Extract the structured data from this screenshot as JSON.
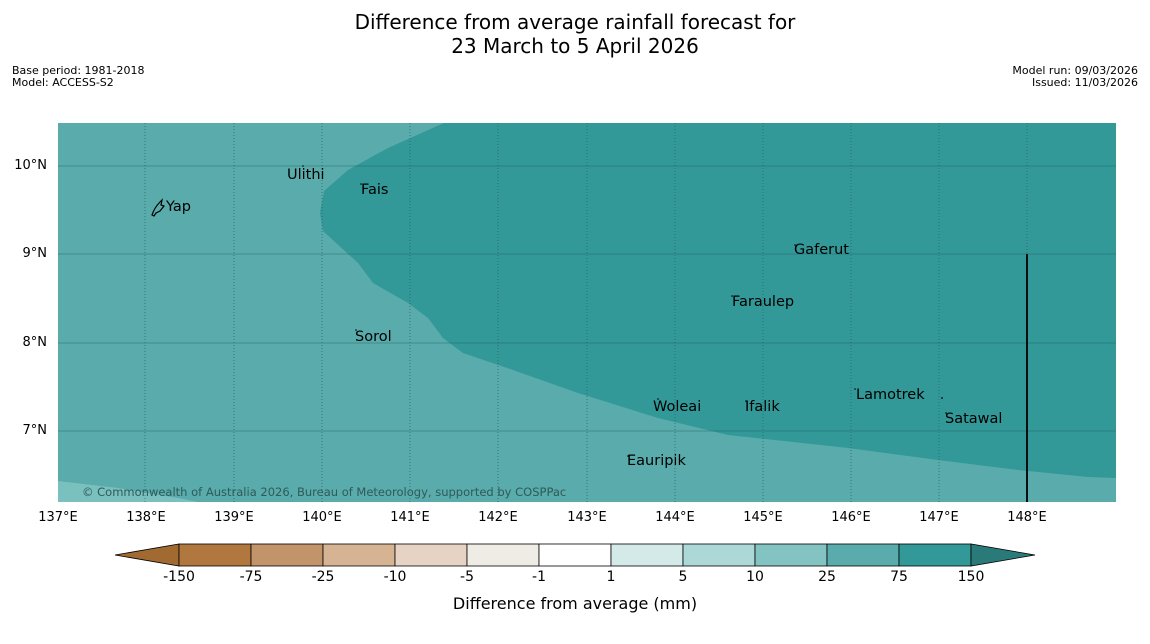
{
  "title": {
    "line1": "Difference from average rainfall forecast for",
    "line2": "23 March to 5 April 2026"
  },
  "meta_left": {
    "base_period": "Base period: 1981-2018",
    "model": "Model: ACCESS-S2"
  },
  "meta_right": {
    "model_run": "Model run: 09/03/2026",
    "issued": "Issued: 11/03/2026"
  },
  "map": {
    "lat_labels": [
      "10°N",
      "9°N",
      "8°N",
      "7°N"
    ],
    "lon_labels": [
      "137°E",
      "138°E",
      "139°E",
      "140°E",
      "141°E",
      "142°E",
      "143°E",
      "144°E",
      "145°E",
      "146°E",
      "147°E",
      "148°E"
    ],
    "places": [
      "Yap",
      "Ulithi",
      "Fais",
      "Gaferut",
      "Faraulep",
      "Sorol",
      "Woleai",
      "Ifalik",
      "Lamotrek",
      "Satawal",
      "Eauripik"
    ],
    "copyright": "© Commonwealth of Australia 2026, Bureau of Meteorology, supported by COSPPac",
    "region_colors": {
      "25_to_75": "#5aabab",
      "75_to_150": "#329998"
    }
  },
  "colorbar": {
    "labels": [
      "-150",
      "-75",
      "-25",
      "-10",
      "-5",
      "-1",
      "1",
      "5",
      "10",
      "25",
      "75",
      "150"
    ],
    "colors": [
      "#a06a31",
      "#b0773f",
      "#c2946a",
      "#d6b493",
      "#e6d3c3",
      "#efebe5",
      "#ffffff",
      "#d4eae9",
      "#acd8d7",
      "#83c3c1",
      "#5aabab",
      "#329998",
      "#2b7a7a"
    ],
    "title": "Difference from average (mm)"
  }
}
